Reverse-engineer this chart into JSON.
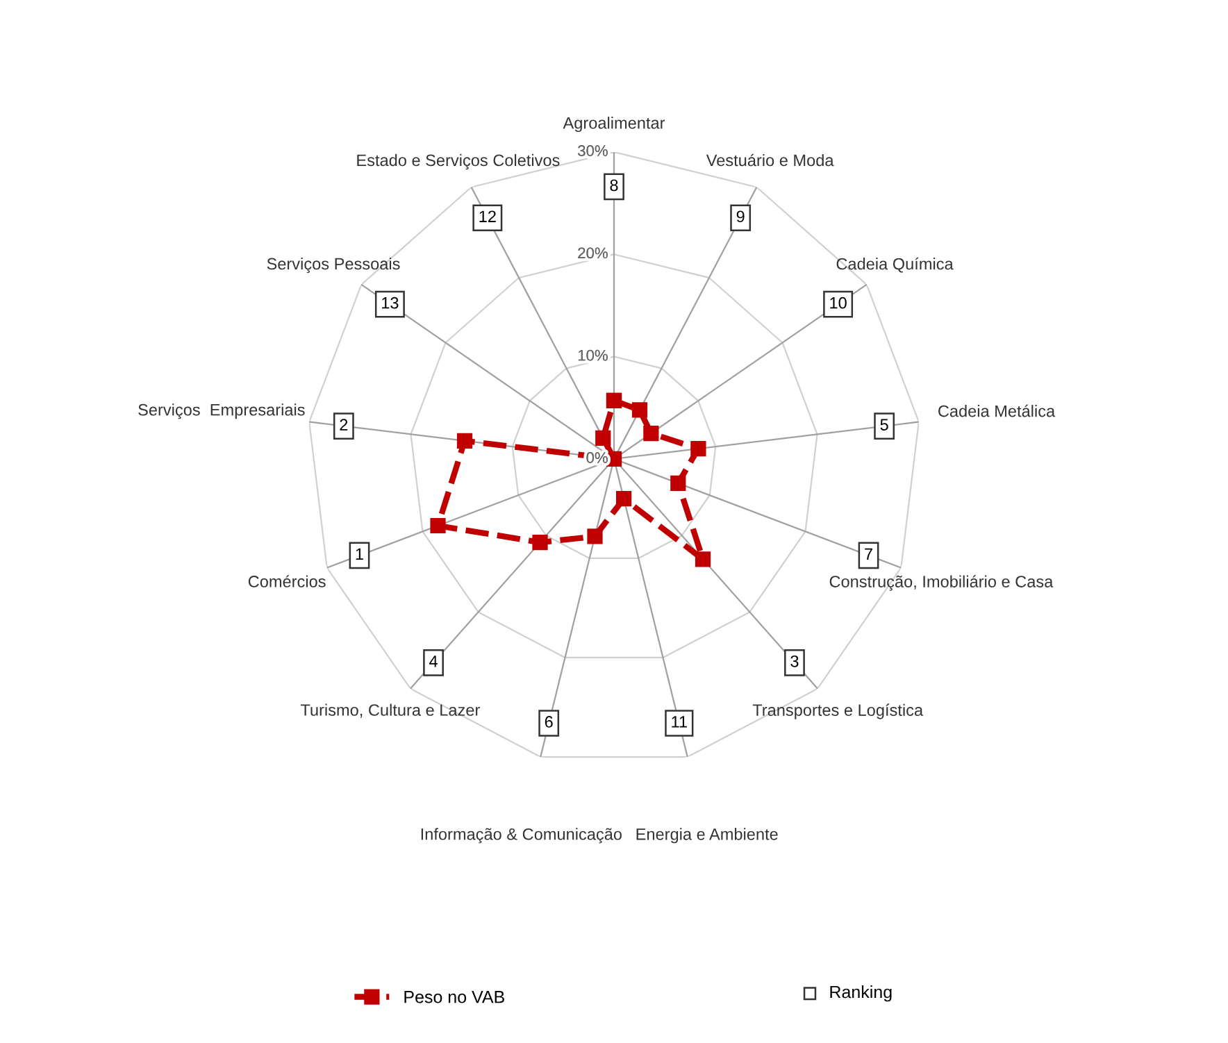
{
  "chart_data": {
    "type": "radar",
    "categories": [
      "Agroalimentar",
      "Vestuário e Moda",
      "Cadeia Química",
      "Cadeia Metálica",
      "Construção, Imobiliário e Casa",
      "Transportes e Logística",
      "Energia e Ambiente",
      "Informação & Comunicação",
      "Turismo, Cultura e Lazer",
      "Comércios",
      "Serviços  Empresariais",
      "Serviços Pessoais",
      "Estado e Serviços Coletivos"
    ],
    "series": [
      {
        "name": "Peso no VAB",
        "color": "#c00000",
        "values": [
          5.7,
          5.4,
          4.4,
          8.3,
          6.7,
          13.1,
          4.0,
          7.8,
          10.9,
          18.4,
          14.7,
          0.0,
          2.3
        ]
      }
    ],
    "ylim": [
      0,
      30
    ],
    "yticks": [
      {
        "value": 0,
        "label": "0%"
      },
      {
        "value": 10,
        "label": "10%"
      },
      {
        "value": 20,
        "label": "20%"
      },
      {
        "value": 30,
        "label": "30%"
      }
    ],
    "grid": true,
    "legend": "bottom",
    "marker": "square",
    "line_style": "dashed",
    "annotations": [
      {
        "text": "8",
        "x": "Agroalimentar"
      },
      {
        "text": "9",
        "x": "Vestuário e Moda"
      },
      {
        "text": "10",
        "x": "Cadeia Química"
      },
      {
        "text": "5",
        "x": "Cadeia Metálica"
      },
      {
        "text": "7",
        "x": "Construção, Imobiliário e Casa"
      },
      {
        "text": "3",
        "x": "Transportes e Logística"
      },
      {
        "text": "11",
        "x": "Energia e Ambiente"
      },
      {
        "text": "6",
        "x": "Informação & Comunicação"
      },
      {
        "text": "4",
        "x": "Turismo, Cultura e Lazer"
      },
      {
        "text": "1",
        "x": "Comércios"
      },
      {
        "text": "2",
        "x": "Serviços  Empresariais"
      },
      {
        "text": "13",
        "x": "Serviços Pessoais"
      },
      {
        "text": "12",
        "x": "Estado e Serviços Coletivos"
      },
      "Ranking"
    ]
  }
}
